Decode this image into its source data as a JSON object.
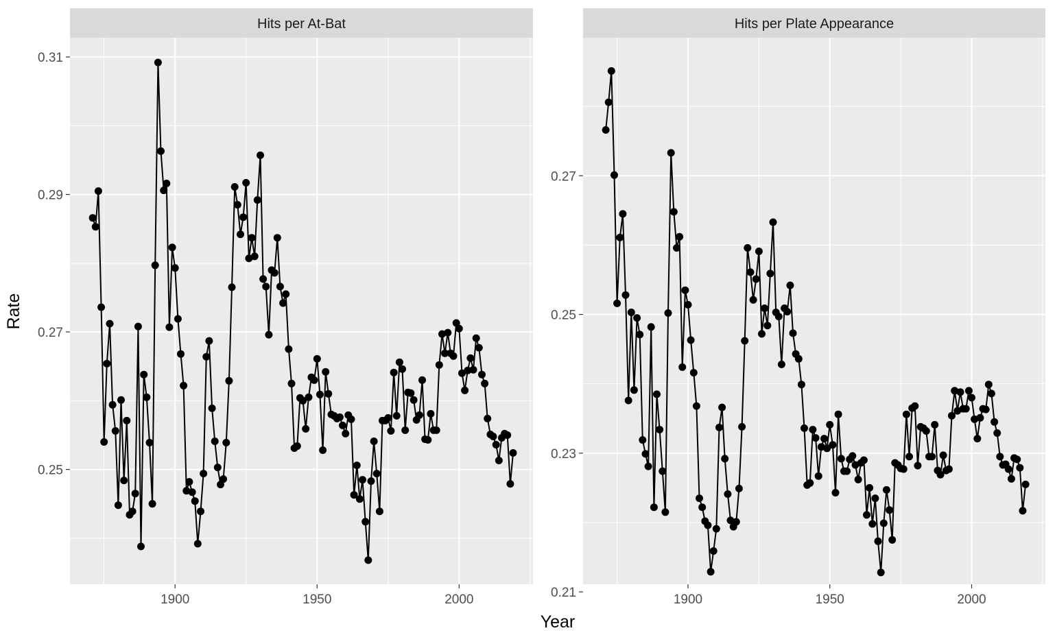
{
  "chart_data": {
    "type": "line",
    "xlabel": "Year",
    "ylabel": "Rate",
    "markers": "points",
    "grid": true,
    "colors": {
      "panel_bg": "#EBEBEB",
      "strip_bg": "#D9D9D9",
      "grid": "#FFFFFF",
      "line": "#000000"
    },
    "panels": [
      {
        "title": "Hits per At-Bat",
        "xlim": [
          1863,
          2026
        ],
        "ylim": [
          0.2333,
          0.3128
        ],
        "x_ticks": [
          1900,
          1950,
          2000
        ],
        "y_ticks": [
          0.25,
          0.27,
          0.29,
          0.31
        ],
        "x_tick_labels": [
          "1900",
          "1950",
          "2000"
        ],
        "y_tick_labels": [
          "0.25",
          "0.27",
          "0.29",
          "0.31"
        ],
        "series": [
          {
            "x": [
              1871,
              1872,
              1873,
              1874,
              1875,
              1876,
              1877,
              1878,
              1879,
              1880,
              1881,
              1882,
              1883,
              1884,
              1885,
              1886,
              1887,
              1888,
              1889,
              1890,
              1891,
              1892,
              1893,
              1894,
              1895,
              1896,
              1897,
              1898,
              1899,
              1900,
              1901,
              1902,
              1903,
              1904,
              1905,
              1906,
              1907,
              1908,
              1909,
              1910,
              1911,
              1912,
              1913,
              1914,
              1915,
              1916,
              1917,
              1918,
              1919,
              1920,
              1921,
              1922,
              1923,
              1924,
              1925,
              1926,
              1927,
              1928,
              1929,
              1930,
              1931,
              1932,
              1933,
              1934,
              1935,
              1936,
              1937,
              1938,
              1939,
              1940,
              1941,
              1942,
              1943,
              1944,
              1945,
              1946,
              1947,
              1948,
              1949,
              1950,
              1951,
              1952,
              1953,
              1954,
              1955,
              1956,
              1957,
              1958,
              1959,
              1960,
              1961,
              1962,
              1963,
              1964,
              1965,
              1966,
              1967,
              1968,
              1969,
              1970,
              1971,
              1972,
              1973,
              1974,
              1975,
              1976,
              1977,
              1978,
              1979,
              1980,
              1981,
              1982,
              1983,
              1984,
              1985,
              1986,
              1987,
              1988,
              1989,
              1990,
              1991,
              1992,
              1993,
              1994,
              1995,
              1996,
              1997,
              1998,
              1999,
              2000,
              2001,
              2002,
              2003,
              2004,
              2005,
              2006,
              2007,
              2008,
              2009,
              2010,
              2011,
              2012,
              2013,
              2014,
              2015,
              2016,
              2017,
              2018,
              2019
            ],
            "y": [
              0.2866,
              0.2853,
              0.2905,
              0.2736,
              0.254,
              0.2654,
              0.2712,
              0.2594,
              0.2556,
              0.2448,
              0.2601,
              0.2484,
              0.2571,
              0.2434,
              0.2439,
              0.2465,
              0.2708,
              0.2388,
              0.2638,
              0.2605,
              0.2539,
              0.245,
              0.2797,
              0.3092,
              0.2963,
              0.2906,
              0.2916,
              0.2707,
              0.2823,
              0.2793,
              0.2719,
              0.2668,
              0.2622,
              0.2469,
              0.2482,
              0.2467,
              0.2454,
              0.2392,
              0.2439,
              0.2494,
              0.2664,
              0.2687,
              0.2589,
              0.2541,
              0.2503,
              0.2478,
              0.2486,
              0.2539,
              0.2629,
              0.2765,
              0.2911,
              0.2885,
              0.2842,
              0.2867,
              0.2917,
              0.2807,
              0.2837,
              0.281,
              0.2892,
              0.2957,
              0.2777,
              0.2766,
              0.2696,
              0.279,
              0.2786,
              0.2837,
              0.2766,
              0.2742,
              0.2755,
              0.2675,
              0.2625,
              0.2531,
              0.2534,
              0.2604,
              0.26,
              0.2559,
              0.2605,
              0.2634,
              0.263,
              0.2661,
              0.2609,
              0.2528,
              0.2642,
              0.261,
              0.258,
              0.2578,
              0.2574,
              0.2576,
              0.2564,
              0.2552,
              0.2579,
              0.2573,
              0.2463,
              0.2506,
              0.2457,
              0.2485,
              0.2424,
              0.2368,
              0.2483,
              0.2541,
              0.2494,
              0.2439,
              0.2571,
              0.2571,
              0.2575,
              0.2556,
              0.2641,
              0.2578,
              0.2656,
              0.2646,
              0.2557,
              0.2612,
              0.2611,
              0.2601,
              0.2572,
              0.2579,
              0.263,
              0.2544,
              0.2543,
              0.2581,
              0.2557,
              0.2557,
              0.2652,
              0.2697,
              0.2669,
              0.2699,
              0.2669,
              0.2665,
              0.2713,
              0.2705,
              0.264,
              0.2615,
              0.2644,
              0.2662,
              0.2645,
              0.2691,
              0.2677,
              0.2638,
              0.2625,
              0.2574,
              0.2551,
              0.2548,
              0.2536,
              0.2513,
              0.2546,
              0.2552,
              0.255,
              0.2479,
              0.2524
            ]
          }
        ]
      },
      {
        "title": "Hits per Plate Appearance",
        "xlim": [
          1863,
          2026
        ],
        "ylim": [
          0.2111,
          0.2899
        ],
        "x_ticks": [
          1900,
          1950,
          2000
        ],
        "y_ticks": [
          0.21,
          0.23,
          0.25,
          0.27
        ],
        "x_tick_labels": [
          "1900",
          "1950",
          "2000"
        ],
        "y_tick_labels": [
          "0.21",
          "0.23",
          "0.25",
          "0.27"
        ],
        "series": [
          {
            "x": [
              1871,
              1872,
              1873,
              1874,
              1875,
              1876,
              1877,
              1878,
              1879,
              1880,
              1881,
              1882,
              1883,
              1884,
              1885,
              1886,
              1887,
              1888,
              1889,
              1890,
              1891,
              1892,
              1893,
              1894,
              1895,
              1896,
              1897,
              1898,
              1899,
              1900,
              1901,
              1902,
              1903,
              1904,
              1905,
              1906,
              1907,
              1908,
              1909,
              1910,
              1911,
              1912,
              1913,
              1914,
              1915,
              1916,
              1917,
              1918,
              1919,
              1920,
              1921,
              1922,
              1923,
              1924,
              1925,
              1926,
              1927,
              1928,
              1929,
              1930,
              1931,
              1932,
              1933,
              1934,
              1935,
              1936,
              1937,
              1938,
              1939,
              1940,
              1941,
              1942,
              1943,
              1944,
              1945,
              1946,
              1947,
              1948,
              1949,
              1950,
              1951,
              1952,
              1953,
              1954,
              1955,
              1956,
              1957,
              1958,
              1959,
              1960,
              1961,
              1962,
              1963,
              1964,
              1965,
              1966,
              1967,
              1968,
              1969,
              1970,
              1971,
              1972,
              1973,
              1974,
              1975,
              1976,
              1977,
              1978,
              1979,
              1980,
              1981,
              1982,
              1983,
              1984,
              1985,
              1986,
              1987,
              1988,
              1989,
              1990,
              1991,
              1992,
              1993,
              1994,
              1995,
              1996,
              1997,
              1998,
              1999,
              2000,
              2001,
              2002,
              2003,
              2004,
              2005,
              2006,
              2007,
              2008,
              2009,
              2010,
              2011,
              2012,
              2013,
              2014,
              2015,
              2016,
              2017,
              2018,
              2019
            ],
            "y": [
              0.2766,
              0.2806,
              0.2851,
              0.2701,
              0.2516,
              0.2611,
              0.2645,
              0.2528,
              0.2376,
              0.2503,
              0.2391,
              0.2495,
              0.2471,
              0.2319,
              0.2299,
              0.2281,
              0.2482,
              0.2222,
              0.2385,
              0.2334,
              0.2274,
              0.2215,
              0.2502,
              0.2733,
              0.2648,
              0.2596,
              0.2612,
              0.2424,
              0.2535,
              0.2514,
              0.2463,
              0.2416,
              0.2368,
              0.2235,
              0.2222,
              0.2202,
              0.2196,
              0.2129,
              0.2159,
              0.2191,
              0.2337,
              0.2366,
              0.2292,
              0.2241,
              0.2203,
              0.2194,
              0.2201,
              0.2249,
              0.2338,
              0.2462,
              0.2596,
              0.2561,
              0.2521,
              0.2551,
              0.2591,
              0.2472,
              0.2509,
              0.2484,
              0.2559,
              0.2633,
              0.2503,
              0.2497,
              0.2428,
              0.2509,
              0.2504,
              0.2542,
              0.2473,
              0.2443,
              0.2436,
              0.2399,
              0.2336,
              0.2254,
              0.2257,
              0.2334,
              0.2322,
              0.2267,
              0.2309,
              0.2321,
              0.2307,
              0.2341,
              0.2312,
              0.2243,
              0.2356,
              0.2292,
              0.2274,
              0.2274,
              0.2291,
              0.2296,
              0.2283,
              0.2262,
              0.2286,
              0.229,
              0.2211,
              0.225,
              0.2198,
              0.2235,
              0.2173,
              0.2128,
              0.2199,
              0.2247,
              0.2218,
              0.2175,
              0.2286,
              0.2283,
              0.2278,
              0.2277,
              0.2356,
              0.2295,
              0.2365,
              0.2368,
              0.2282,
              0.2338,
              0.2336,
              0.2332,
              0.2295,
              0.2295,
              0.2341,
              0.2275,
              0.2269,
              0.2297,
              0.2275,
              0.2277,
              0.2354,
              0.239,
              0.2361,
              0.2388,
              0.2364,
              0.2364,
              0.239,
              0.238,
              0.2349,
              0.2321,
              0.2351,
              0.2364,
              0.2363,
              0.2399,
              0.2386,
              0.2345,
              0.2329,
              0.2295,
              0.2283,
              0.2284,
              0.2277,
              0.2263,
              0.2293,
              0.2291,
              0.2279,
              0.2217,
              0.2255
            ]
          }
        ]
      }
    ]
  }
}
